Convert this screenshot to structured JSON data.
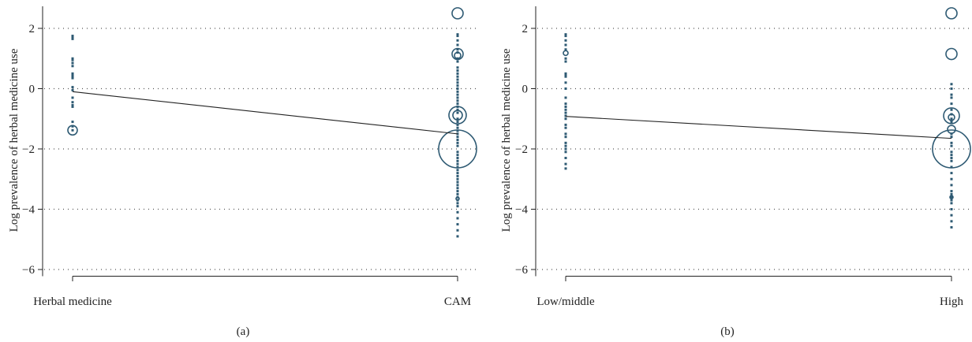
{
  "chart_data": [
    {
      "type": "scatter",
      "panel_label": "(a)",
      "ylabel": "Log prevalence of herbal medicine use",
      "ylim": [
        -6.2,
        2.8
      ],
      "yticks": [
        2,
        0,
        -2,
        -4,
        -6
      ],
      "ytick_labels": [
        "2",
        "0",
        "−2",
        "−4",
        "−6"
      ],
      "categories": [
        "Herbal medicine",
        "CAM"
      ],
      "grid": true,
      "fit_line": {
        "y_start": -0.1,
        "y_end": -1.5
      },
      "bubbles": [
        {
          "category": "Herbal medicine",
          "y": -1.38,
          "size": 6
        },
        {
          "category": "CAM",
          "y": 2.5,
          "size": 7
        },
        {
          "category": "CAM",
          "y": 1.15,
          "size": 7
        },
        {
          "category": "CAM",
          "y": 1.1,
          "size": 4
        },
        {
          "category": "CAM",
          "y": -0.88,
          "size": 11
        },
        {
          "category": "CAM",
          "y": -0.88,
          "size": 6
        },
        {
          "category": "CAM",
          "y": -2.0,
          "size": 24
        },
        {
          "category": "CAM",
          "y": -3.65,
          "size": 2
        }
      ],
      "points": [
        {
          "category": "Herbal medicine",
          "values": [
            1.75,
            1.7,
            1.65,
            1.0,
            0.95,
            0.85,
            0.75,
            0.5,
            0.45,
            0.4,
            0.35,
            0.05,
            -0.05,
            -0.3,
            -0.45,
            -0.55,
            -0.6,
            -1.1,
            -1.25,
            -1.38
          ]
        },
        {
          "category": "CAM",
          "values": [
            1.8,
            1.75,
            1.6,
            1.45,
            1.3,
            1.2,
            1.0,
            0.9,
            0.7,
            0.6,
            0.5,
            0.4,
            0.3,
            0.2,
            0.1,
            0.0,
            -0.1,
            -0.2,
            -0.3,
            -0.4,
            -0.5,
            -0.6,
            -0.7,
            -0.8,
            -1.0,
            -1.1,
            -1.2,
            -1.3,
            -1.4,
            -1.5,
            -1.6,
            -1.7,
            -1.8,
            -1.9,
            -2.1,
            -2.2,
            -2.3,
            -2.4,
            -2.5,
            -2.6,
            -2.7,
            -2.8,
            -2.9,
            -3.0,
            -3.1,
            -3.2,
            -3.3,
            -3.4,
            -3.5,
            -3.6,
            -3.7,
            -3.8,
            -3.9,
            -4.1,
            -4.3,
            -4.5,
            -4.7,
            -4.9
          ]
        }
      ]
    },
    {
      "type": "scatter",
      "panel_label": "(b)",
      "ylabel": "Log prevalence of herbal medicine use",
      "ylim": [
        -6.2,
        2.8
      ],
      "yticks": [
        2,
        0,
        -2,
        -4,
        -6
      ],
      "ytick_labels": [
        "2",
        "0",
        "−2",
        "−4",
        "−6"
      ],
      "categories": [
        "Low/middle",
        "High"
      ],
      "grid": true,
      "fit_line": {
        "y_start": -0.92,
        "y_end": -1.65
      },
      "bubbles": [
        {
          "category": "Low/middle",
          "y": 1.18,
          "size": 3
        },
        {
          "category": "High",
          "y": 2.5,
          "size": 7
        },
        {
          "category": "High",
          "y": 1.15,
          "size": 7
        },
        {
          "category": "High",
          "y": -0.9,
          "size": 10
        },
        {
          "category": "High",
          "y": -0.95,
          "size": 4
        },
        {
          "category": "High",
          "y": -1.35,
          "size": 5
        },
        {
          "category": "High",
          "y": -2.0,
          "size": 24
        },
        {
          "category": "High",
          "y": -3.6,
          "size": 2
        }
      ],
      "points": [
        {
          "category": "Low/middle",
          "values": [
            1.8,
            1.75,
            1.6,
            1.45,
            1.3,
            1.0,
            0.9,
            0.5,
            0.45,
            0.4,
            0.2,
            0.0,
            -0.3,
            -0.5,
            -0.6,
            -0.7,
            -0.8,
            -0.9,
            -1.0,
            -1.2,
            -1.3,
            -1.5,
            -1.6,
            -1.8,
            -1.9,
            -2.0,
            -2.1,
            -2.3,
            -2.5,
            -2.65
          ]
        },
        {
          "category": "High",
          "values": [
            0.15,
            0.0,
            -0.2,
            -0.3,
            -0.5,
            -0.7,
            -0.85,
            -1.0,
            -1.1,
            -1.5,
            -1.6,
            -1.8,
            -1.9,
            -2.1,
            -2.2,
            -2.3,
            -2.4,
            -2.6,
            -2.8,
            -3.0,
            -3.2,
            -3.4,
            -3.5,
            -3.6,
            -3.7,
            -3.8,
            -4.0,
            -4.2,
            -4.4,
            -4.6
          ]
        }
      ]
    }
  ]
}
